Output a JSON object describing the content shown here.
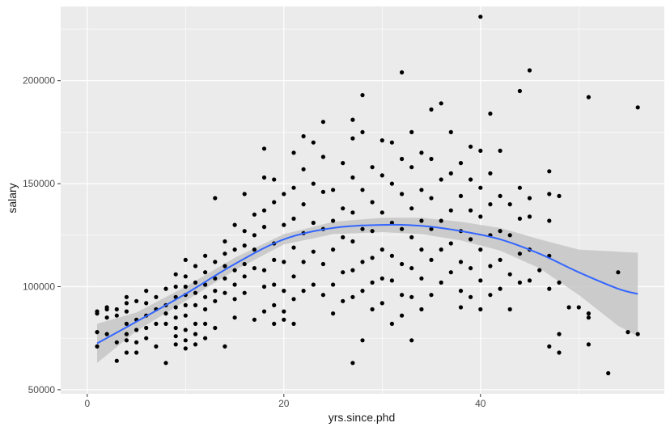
{
  "chart_data": {
    "type": "scatter",
    "title": "",
    "xlabel": "yrs.since.phd",
    "ylabel": "salary",
    "xlim": [
      -2.7,
      58.7
    ],
    "ylim": [
      48000,
      236000
    ],
    "x_ticks": [
      0,
      20,
      40
    ],
    "x_tick_labels": [
      "0",
      "20",
      "40"
    ],
    "y_ticks": [
      50000,
      100000,
      150000,
      200000
    ],
    "y_tick_labels": [
      "50000",
      "100000",
      "150000",
      "200000"
    ],
    "grid": true,
    "legend": "none",
    "colors": {
      "panel": "#ebebeb",
      "grid": "#ffffff",
      "point": "#000000",
      "smooth": "#3366ff",
      "band": "#c6c6c6"
    },
    "points": [
      [
        1,
        88000
      ],
      [
        1,
        87000
      ],
      [
        1,
        78000
      ],
      [
        1,
        71000
      ],
      [
        2,
        89000
      ],
      [
        2,
        85000
      ],
      [
        2,
        90000
      ],
      [
        2,
        77000
      ],
      [
        3,
        89000
      ],
      [
        3,
        86000
      ],
      [
        3,
        73000
      ],
      [
        3,
        64000
      ],
      [
        4,
        95000
      ],
      [
        4,
        92000
      ],
      [
        4,
        88000
      ],
      [
        4,
        82000
      ],
      [
        4,
        77000
      ],
      [
        4,
        74000
      ],
      [
        4,
        68000
      ],
      [
        5,
        93000
      ],
      [
        5,
        84000
      ],
      [
        5,
        79000
      ],
      [
        5,
        73000
      ],
      [
        5,
        68000
      ],
      [
        6,
        98000
      ],
      [
        6,
        92000
      ],
      [
        6,
        86000
      ],
      [
        6,
        80000
      ],
      [
        6,
        75000
      ],
      [
        7,
        95000
      ],
      [
        7,
        89000
      ],
      [
        7,
        82000
      ],
      [
        7,
        71000
      ],
      [
        8,
        99000
      ],
      [
        8,
        91000
      ],
      [
        8,
        87000
      ],
      [
        8,
        82000
      ],
      [
        8,
        63000
      ],
      [
        9,
        106000
      ],
      [
        9,
        100000
      ],
      [
        9,
        95000
      ],
      [
        9,
        90000
      ],
      [
        9,
        85000
      ],
      [
        9,
        80000
      ],
      [
        9,
        76000
      ],
      [
        9,
        72000
      ],
      [
        10,
        113000
      ],
      [
        10,
        105000
      ],
      [
        10,
        100000
      ],
      [
        10,
        96000
      ],
      [
        10,
        91000
      ],
      [
        10,
        86000
      ],
      [
        10,
        79000
      ],
      [
        10,
        74000
      ],
      [
        10,
        70000
      ],
      [
        11,
        110000
      ],
      [
        11,
        102000
      ],
      [
        11,
        97000
      ],
      [
        11,
        91000
      ],
      [
        11,
        82000
      ],
      [
        11,
        77000
      ],
      [
        11,
        72000
      ],
      [
        12,
        115000
      ],
      [
        12,
        107000
      ],
      [
        12,
        101000
      ],
      [
        12,
        95000
      ],
      [
        12,
        89000
      ],
      [
        12,
        82000
      ],
      [
        12,
        75000
      ],
      [
        13,
        143000
      ],
      [
        13,
        112000
      ],
      [
        13,
        104000
      ],
      [
        13,
        98000
      ],
      [
        13,
        93000
      ],
      [
        13,
        80000
      ],
      [
        14,
        122000
      ],
      [
        14,
        116000
      ],
      [
        14,
        110000
      ],
      [
        14,
        104000
      ],
      [
        14,
        97000
      ],
      [
        14,
        71000
      ],
      [
        15,
        130000
      ],
      [
        15,
        118000
      ],
      [
        15,
        108000
      ],
      [
        15,
        101000
      ],
      [
        15,
        94000
      ],
      [
        15,
        85000
      ],
      [
        16,
        145000
      ],
      [
        16,
        127000
      ],
      [
        16,
        120000
      ],
      [
        16,
        111000
      ],
      [
        16,
        105000
      ],
      [
        16,
        97000
      ],
      [
        17,
        135000
      ],
      [
        17,
        125000
      ],
      [
        17,
        118000
      ],
      [
        17,
        109000
      ],
      [
        17,
        84000
      ],
      [
        18,
        167000
      ],
      [
        18,
        153000
      ],
      [
        18,
        137000
      ],
      [
        18,
        129000
      ],
      [
        18,
        108000
      ],
      [
        18,
        100000
      ],
      [
        18,
        88000
      ],
      [
        19,
        152000
      ],
      [
        19,
        141000
      ],
      [
        19,
        121000
      ],
      [
        19,
        113000
      ],
      [
        19,
        101000
      ],
      [
        19,
        91000
      ],
      [
        19,
        82000
      ],
      [
        20,
        145000
      ],
      [
        20,
        130000
      ],
      [
        20,
        112000
      ],
      [
        20,
        98000
      ],
      [
        20,
        88000
      ],
      [
        20,
        84000
      ],
      [
        21,
        165000
      ],
      [
        21,
        148000
      ],
      [
        21,
        133000
      ],
      [
        21,
        119000
      ],
      [
        21,
        105000
      ],
      [
        21,
        94000
      ],
      [
        21,
        82000
      ],
      [
        22,
        173000
      ],
      [
        22,
        157000
      ],
      [
        22,
        140000
      ],
      [
        22,
        126000
      ],
      [
        22,
        112000
      ],
      [
        22,
        98000
      ],
      [
        23,
        170000
      ],
      [
        23,
        150000
      ],
      [
        23,
        131000
      ],
      [
        23,
        117000
      ],
      [
        23,
        101000
      ],
      [
        24,
        180000
      ],
      [
        24,
        163000
      ],
      [
        24,
        146000
      ],
      [
        24,
        128000
      ],
      [
        24,
        111000
      ],
      [
        24,
        96000
      ],
      [
        25,
        147000
      ],
      [
        25,
        132000
      ],
      [
        25,
        118000
      ],
      [
        25,
        101000
      ],
      [
        25,
        87000
      ],
      [
        26,
        160000
      ],
      [
        26,
        138000
      ],
      [
        26,
        124000
      ],
      [
        26,
        107000
      ],
      [
        26,
        93000
      ],
      [
        27,
        181000
      ],
      [
        27,
        172000
      ],
      [
        27,
        153000
      ],
      [
        27,
        136000
      ],
      [
        27,
        122000
      ],
      [
        27,
        108000
      ],
      [
        27,
        95000
      ],
      [
        27,
        63000
      ],
      [
        28,
        193000
      ],
      [
        28,
        175000
      ],
      [
        28,
        147000
      ],
      [
        28,
        128000
      ],
      [
        28,
        112000
      ],
      [
        28,
        98000
      ],
      [
        28,
        74000
      ],
      [
        29,
        158000
      ],
      [
        29,
        141000
      ],
      [
        29,
        127000
      ],
      [
        29,
        114000
      ],
      [
        29,
        102000
      ],
      [
        29,
        89000
      ],
      [
        30,
        171000
      ],
      [
        30,
        154000
      ],
      [
        30,
        136000
      ],
      [
        30,
        118000
      ],
      [
        30,
        104000
      ],
      [
        30,
        92000
      ],
      [
        31,
        170000
      ],
      [
        31,
        150000
      ],
      [
        31,
        131000
      ],
      [
        31,
        115000
      ],
      [
        31,
        103000
      ],
      [
        31,
        82000
      ],
      [
        32,
        204000
      ],
      [
        32,
        162000
      ],
      [
        32,
        145000
      ],
      [
        32,
        128000
      ],
      [
        32,
        111000
      ],
      [
        32,
        96000
      ],
      [
        32,
        86000
      ],
      [
        33,
        175000
      ],
      [
        33,
        158000
      ],
      [
        33,
        138000
      ],
      [
        33,
        124000
      ],
      [
        33,
        109000
      ],
      [
        33,
        95000
      ],
      [
        33,
        74000
      ],
      [
        34,
        165000
      ],
      [
        34,
        147000
      ],
      [
        34,
        132000
      ],
      [
        34,
        118000
      ],
      [
        34,
        104000
      ],
      [
        34,
        89000
      ],
      [
        35,
        186000
      ],
      [
        35,
        162000
      ],
      [
        35,
        143000
      ],
      [
        35,
        128000
      ],
      [
        35,
        113000
      ],
      [
        35,
        96000
      ],
      [
        36,
        189000
      ],
      [
        36,
        152000
      ],
      [
        36,
        132000
      ],
      [
        36,
        118000
      ],
      [
        36,
        102000
      ],
      [
        37,
        175000
      ],
      [
        37,
        155000
      ],
      [
        37,
        137000
      ],
      [
        37,
        121000
      ],
      [
        37,
        107000
      ],
      [
        38,
        160000
      ],
      [
        38,
        144000
      ],
      [
        38,
        127000
      ],
      [
        38,
        112000
      ],
      [
        38,
        98000
      ],
      [
        38,
        90000
      ],
      [
        39,
        168000
      ],
      [
        39,
        152000
      ],
      [
        39,
        137000
      ],
      [
        39,
        123000
      ],
      [
        39,
        109000
      ],
      [
        39,
        95000
      ],
      [
        40,
        231000
      ],
      [
        40,
        166000
      ],
      [
        40,
        148000
      ],
      [
        40,
        134000
      ],
      [
        40,
        118000
      ],
      [
        40,
        103000
      ],
      [
        40,
        89000
      ],
      [
        41,
        184000
      ],
      [
        41,
        155000
      ],
      [
        41,
        140000
      ],
      [
        41,
        125000
      ],
      [
        41,
        110000
      ],
      [
        41,
        96000
      ],
      [
        42,
        166000
      ],
      [
        42,
        144000
      ],
      [
        42,
        127000
      ],
      [
        42,
        113000
      ],
      [
        42,
        99000
      ],
      [
        43,
        140000
      ],
      [
        43,
        125000
      ],
      [
        43,
        106000
      ],
      [
        43,
        89000
      ],
      [
        44,
        195000
      ],
      [
        44,
        148000
      ],
      [
        44,
        133000
      ],
      [
        44,
        116000
      ],
      [
        44,
        102000
      ],
      [
        45,
        205000
      ],
      [
        45,
        143000
      ],
      [
        45,
        134000
      ],
      [
        45,
        118000
      ],
      [
        45,
        103000
      ],
      [
        46,
        108000
      ],
      [
        47,
        156000
      ],
      [
        47,
        145000
      ],
      [
        47,
        132000
      ],
      [
        47,
        115000
      ],
      [
        47,
        99000
      ],
      [
        47,
        71000
      ],
      [
        48,
        144000
      ],
      [
        48,
        102000
      ],
      [
        48,
        77000
      ],
      [
        48,
        68000
      ],
      [
        49,
        90000
      ],
      [
        50,
        90000
      ],
      [
        51,
        192000
      ],
      [
        51,
        87000
      ],
      [
        51,
        85000
      ],
      [
        51,
        72000
      ],
      [
        53,
        58000
      ],
      [
        54,
        107000
      ],
      [
        55,
        78000
      ],
      [
        56,
        187000
      ],
      [
        56,
        77000
      ]
    ],
    "smooth": {
      "x": [
        1,
        5,
        10,
        15,
        20,
        25,
        30,
        34,
        38,
        42,
        46,
        50,
        54,
        56
      ],
      "y": [
        72500,
        83000,
        96500,
        111000,
        123000,
        128500,
        130000,
        129500,
        127000,
        123000,
        116000,
        107000,
        99000,
        96500
      ],
      "lower": [
        63000,
        78500,
        93000,
        108000,
        120500,
        125500,
        126500,
        125500,
        122500,
        117500,
        109000,
        96000,
        81000,
        76000
      ],
      "upper": [
        82000,
        87500,
        100000,
        114000,
        125500,
        131500,
        133500,
        133500,
        131500,
        128500,
        123000,
        118000,
        117000,
        116500
      ]
    }
  }
}
